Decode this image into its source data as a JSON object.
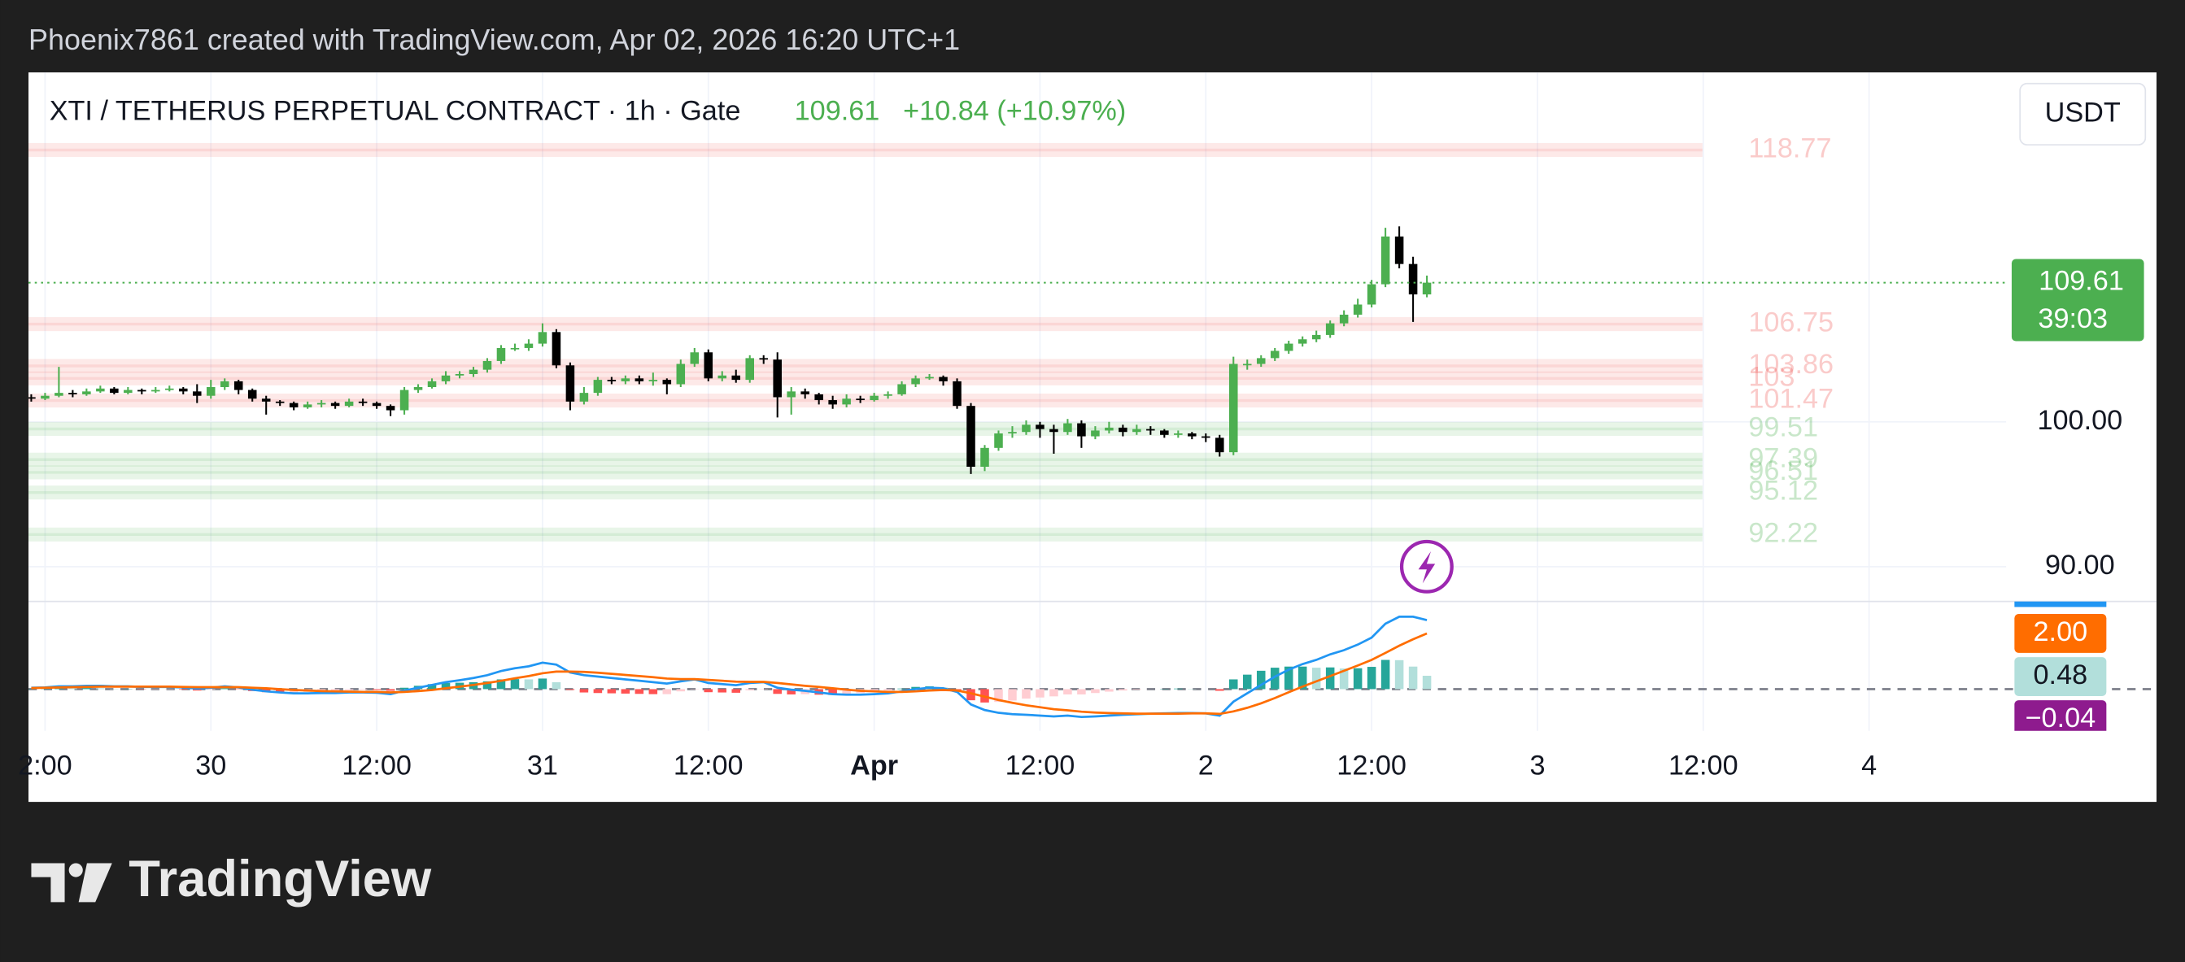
{
  "attribution": "Phoenix7861 created with TradingView.com, Apr 02, 2026 16:20 UTC+1",
  "brand": "TradingView",
  "currency_button": "USDT",
  "chart_data": [
    {
      "type": "candlestick",
      "title": "XTI / TETHERUS PERPETUAL CONTRACT · 1h · Gate",
      "last_price": 109.61,
      "change": "+10.84 (+10.97%)",
      "countdown": "39:03",
      "up_color": "#4caf50",
      "down_color": "#000000",
      "open": [
        101.7,
        101.6,
        101.8,
        102.0,
        101.9,
        102.1,
        102.3,
        102.0,
        102.2,
        102.1,
        102.2,
        102.3,
        102.1,
        101.8,
        102.4,
        102.8,
        102.2,
        101.6,
        101.4,
        101.3,
        101.0,
        101.2,
        101.3,
        101.1,
        101.4,
        101.3,
        101.1,
        100.8,
        102.2,
        102.4,
        102.8,
        103.2,
        103.3,
        103.6,
        104.2,
        105.1,
        105.1,
        105.4,
        106.2,
        103.9,
        101.4,
        102.0,
        102.9,
        102.8,
        103.0,
        102.8,
        102.9,
        102.6,
        104.0,
        104.8,
        103.0,
        103.2,
        102.9,
        104.4,
        104.3,
        101.7,
        102.1,
        101.9,
        101.5,
        101.2,
        101.6,
        101.5,
        101.8,
        101.9,
        102.6,
        103.0,
        103.1,
        102.8,
        101.1,
        96.9,
        98.2,
        99.2,
        99.3,
        99.8,
        99.5,
        99.3,
        99.9,
        99.0,
        99.4,
        99.6,
        99.3,
        99.5,
        99.4,
        99.1,
        99.2,
        99.0,
        98.9,
        97.9,
        104.0,
        104.0,
        104.4,
        104.9,
        105.4,
        105.7,
        106.0,
        106.8,
        107.4,
        108.1,
        109.5,
        112.8,
        110.9,
        108.8
      ],
      "high": [
        101.9,
        102.0,
        103.8,
        102.2,
        102.3,
        102.5,
        102.4,
        102.4,
        102.3,
        102.4,
        102.5,
        102.4,
        102.6,
        102.9,
        103.0,
        102.9,
        102.3,
        101.8,
        101.5,
        101.4,
        101.4,
        101.5,
        101.4,
        101.6,
        101.6,
        101.4,
        101.2,
        102.4,
        102.6,
        103.0,
        103.5,
        103.5,
        103.8,
        104.4,
        105.3,
        105.4,
        105.7,
        106.8,
        106.4,
        104.1,
        102.4,
        103.1,
        103.1,
        103.2,
        103.2,
        103.4,
        103.0,
        104.3,
        105.1,
        105.0,
        103.5,
        103.6,
        104.6,
        104.6,
        104.8,
        102.4,
        102.3,
        102.0,
        101.8,
        101.9,
        101.8,
        102.0,
        102.1,
        102.8,
        103.2,
        103.3,
        103.2,
        103.0,
        101.3,
        98.4,
        99.4,
        99.7,
        100.1,
        100.0,
        99.8,
        100.2,
        100.1,
        99.7,
        100.0,
        99.8,
        99.8,
        99.7,
        99.5,
        99.4,
        99.3,
        99.2,
        99.1,
        104.5,
        104.3,
        104.6,
        105.1,
        105.6,
        105.9,
        106.3,
        107.0,
        107.7,
        108.5,
        109.8,
        113.4,
        113.5,
        111.4,
        110.1
      ],
      "low": [
        101.4,
        101.5,
        101.7,
        101.7,
        101.8,
        102.0,
        101.9,
        101.9,
        101.9,
        102.0,
        102.1,
        101.9,
        101.3,
        101.6,
        102.2,
        101.9,
        101.4,
        100.5,
        101.1,
        100.8,
        100.9,
        101.0,
        100.9,
        101.0,
        101.1,
        100.9,
        100.4,
        100.5,
        102.0,
        102.3,
        102.6,
        103.0,
        103.1,
        103.4,
        104.0,
        104.9,
        104.9,
        105.2,
        103.7,
        100.8,
        101.2,
        101.8,
        102.6,
        102.6,
        102.6,
        102.5,
        101.9,
        102.4,
        103.8,
        102.8,
        102.8,
        102.7,
        102.7,
        104.0,
        100.3,
        100.5,
        101.6,
        101.2,
        100.9,
        101.0,
        101.3,
        101.4,
        101.6,
        101.8,
        102.4,
        102.9,
        102.5,
        100.9,
        96.4,
        96.6,
        98.0,
        98.9,
        99.1,
        98.9,
        97.8,
        99.1,
        98.2,
        98.8,
        99.2,
        99.0,
        99.1,
        99.1,
        98.9,
        98.9,
        98.8,
        98.6,
        97.6,
        97.7,
        103.6,
        103.8,
        104.2,
        104.7,
        105.2,
        105.5,
        105.8,
        106.6,
        107.2,
        107.9,
        109.3,
        110.6,
        106.9,
        108.6
      ],
      "close": [
        101.6,
        101.8,
        102.0,
        101.9,
        102.1,
        102.3,
        102.0,
        102.2,
        102.1,
        102.2,
        102.3,
        102.1,
        101.8,
        102.4,
        102.8,
        102.2,
        101.6,
        101.4,
        101.3,
        101.0,
        101.2,
        101.3,
        101.1,
        101.4,
        101.3,
        101.1,
        100.8,
        102.2,
        102.4,
        102.8,
        103.2,
        103.3,
        103.6,
        104.2,
        105.1,
        105.1,
        105.4,
        106.2,
        103.9,
        101.4,
        102.0,
        102.9,
        102.8,
        103.0,
        102.8,
        102.9,
        102.6,
        104.0,
        104.8,
        103.0,
        103.2,
        102.9,
        104.4,
        104.3,
        101.7,
        102.1,
        101.9,
        101.5,
        101.2,
        101.6,
        101.5,
        101.8,
        101.9,
        102.6,
        103.0,
        103.1,
        102.8,
        101.1,
        96.9,
        98.2,
        99.2,
        99.3,
        99.8,
        99.5,
        99.3,
        99.9,
        99.0,
        99.4,
        99.6,
        99.3,
        99.5,
        99.4,
        99.1,
        99.2,
        99.0,
        98.9,
        97.9,
        104.0,
        104.0,
        104.4,
        104.9,
        105.4,
        105.7,
        106.0,
        106.8,
        107.4,
        108.1,
        109.5,
        112.8,
        110.9,
        108.8,
        109.61
      ],
      "levels": [
        {
          "value": 118.77,
          "color": "#ef5350"
        },
        {
          "value": 106.75,
          "color": "#ef5350"
        },
        {
          "value": 103.86,
          "color": "#ef5350"
        },
        {
          "value": 103,
          "color": "#ef5350"
        },
        {
          "value": 101.47,
          "color": "#ef5350"
        },
        {
          "value": 99.51,
          "color": "#4caf50"
        },
        {
          "value": 97.39,
          "color": "#4caf50"
        },
        {
          "value": 96.51,
          "color": "#4caf50"
        },
        {
          "value": 95.12,
          "color": "#4caf50"
        },
        {
          "value": 92.22,
          "color": "#4caf50"
        }
      ],
      "ylim": [
        87.6,
        124.13
      ],
      "yticks": [
        {
          "value": 100,
          "label": "100.00"
        },
        {
          "value": 90,
          "label": "90.00"
        }
      ],
      "xlim": [
        -0.2,
        153.8
      ],
      "xticks": [
        {
          "value": 1,
          "label": "2:00"
        },
        {
          "value": 13,
          "label": "30"
        },
        {
          "value": 25,
          "label": "12:00"
        },
        {
          "value": 37,
          "label": "31"
        },
        {
          "value": 49,
          "label": "12:00"
        },
        {
          "value": 61,
          "label": "Apr"
        },
        {
          "value": 73,
          "label": "12:00"
        },
        {
          "value": 85,
          "label": "2"
        },
        {
          "value": 97,
          "label": "12:00"
        },
        {
          "value": 109,
          "label": "3"
        },
        {
          "value": 121,
          "label": "12:00"
        },
        {
          "value": 133,
          "label": "4"
        }
      ],
      "grid": true
    },
    {
      "type": "macd",
      "ylim": [
        -1.5,
        3.15
      ],
      "hlines": [
        0
      ],
      "series": [
        {
          "color": "#2196f3",
          "values": [
            0.05,
            0.06,
            0.1,
            0.1,
            0.12,
            0.12,
            0.1,
            0.1,
            0.08,
            0.08,
            0.08,
            0.06,
            0.02,
            0.05,
            0.1,
            0.06,
            -0.02,
            -0.08,
            -0.12,
            -0.15,
            -0.15,
            -0.14,
            -0.14,
            -0.12,
            -0.12,
            -0.13,
            -0.18,
            -0.05,
            0.05,
            0.15,
            0.25,
            0.32,
            0.4,
            0.5,
            0.65,
            0.75,
            0.82,
            0.95,
            0.88,
            0.6,
            0.5,
            0.45,
            0.4,
            0.35,
            0.3,
            0.25,
            0.2,
            0.28,
            0.35,
            0.22,
            0.18,
            0.14,
            0.22,
            0.25,
            0.05,
            -0.02,
            -0.06,
            -0.12,
            -0.18,
            -0.2,
            -0.2,
            -0.18,
            -0.15,
            -0.08,
            0.0,
            0.05,
            0.03,
            -0.1,
            -0.55,
            -0.75,
            -0.85,
            -0.9,
            -0.92,
            -0.95,
            -0.98,
            -0.95,
            -1.0,
            -0.98,
            -0.95,
            -0.92,
            -0.9,
            -0.88,
            -0.87,
            -0.86,
            -0.86,
            -0.87,
            -0.95,
            -0.45,
            -0.15,
            0.15,
            0.45,
            0.7,
            0.9,
            1.05,
            1.25,
            1.4,
            1.6,
            1.85,
            2.35,
            2.6,
            2.6,
            2.48
          ]
        },
        {
          "color": "#ff6d00",
          "last_value_label": "2.00",
          "values": [
            0.04,
            0.05,
            0.06,
            0.07,
            0.08,
            0.09,
            0.09,
            0.09,
            0.09,
            0.09,
            0.09,
            0.08,
            0.07,
            0.07,
            0.07,
            0.07,
            0.05,
            0.03,
            0.0,
            -0.03,
            -0.05,
            -0.07,
            -0.08,
            -0.09,
            -0.1,
            -0.1,
            -0.12,
            -0.1,
            -0.07,
            -0.03,
            0.03,
            0.09,
            0.15,
            0.22,
            0.3,
            0.39,
            0.47,
            0.57,
            0.63,
            0.63,
            0.62,
            0.59,
            0.55,
            0.51,
            0.47,
            0.43,
            0.38,
            0.36,
            0.36,
            0.33,
            0.3,
            0.27,
            0.26,
            0.26,
            0.22,
            0.17,
            0.12,
            0.08,
            0.03,
            -0.02,
            -0.06,
            -0.08,
            -0.1,
            -0.1,
            -0.08,
            -0.05,
            -0.03,
            -0.05,
            -0.15,
            -0.27,
            -0.39,
            -0.49,
            -0.58,
            -0.65,
            -0.72,
            -0.76,
            -0.81,
            -0.84,
            -0.86,
            -0.87,
            -0.88,
            -0.88,
            -0.88,
            -0.88,
            -0.87,
            -0.87,
            -0.89,
            -0.8,
            -0.67,
            -0.51,
            -0.32,
            -0.11,
            0.09,
            0.28,
            0.47,
            0.66,
            0.85,
            1.05,
            1.3,
            1.56,
            1.79,
            2.0
          ]
        }
      ],
      "histogram": {
        "colors": [
          "#26a69a",
          "#b2dfdb",
          "#ffcdd2",
          "#ff5252"
        ],
        "values": [
          0.01,
          0.01,
          0.04,
          0.03,
          0.04,
          0.03,
          0.01,
          0.01,
          -0.01,
          -0.01,
          -0.01,
          -0.02,
          -0.05,
          -0.02,
          0.03,
          -0.01,
          -0.07,
          -0.11,
          -0.12,
          -0.12,
          -0.1,
          -0.07,
          -0.06,
          -0.03,
          -0.02,
          -0.03,
          -0.06,
          0.05,
          0.12,
          0.18,
          0.22,
          0.23,
          0.25,
          0.28,
          0.35,
          0.36,
          0.35,
          0.38,
          0.25,
          -0.03,
          -0.12,
          -0.14,
          -0.15,
          -0.16,
          -0.17,
          -0.18,
          -0.18,
          -0.08,
          -0.01,
          -0.11,
          -0.12,
          -0.13,
          -0.04,
          -0.01,
          -0.17,
          -0.19,
          -0.18,
          -0.2,
          -0.21,
          -0.18,
          -0.14,
          -0.1,
          -0.05,
          0.02,
          0.08,
          0.1,
          0.06,
          -0.05,
          -0.4,
          -0.48,
          -0.46,
          -0.41,
          -0.34,
          -0.3,
          -0.26,
          -0.19,
          -0.19,
          -0.14,
          -0.09,
          -0.05,
          -0.02,
          0.0,
          0.01,
          0.02,
          0.01,
          0.0,
          -0.06,
          0.35,
          0.52,
          0.66,
          0.77,
          0.81,
          0.81,
          0.77,
          0.78,
          0.74,
          0.75,
          0.8,
          1.05,
          1.04,
          0.81,
          0.48
        ],
        "last_value_label": "0.48"
      },
      "extra_labels": [
        {
          "value": -0.04,
          "label": "−0.04",
          "color": "#8e1b8e"
        }
      ]
    }
  ]
}
